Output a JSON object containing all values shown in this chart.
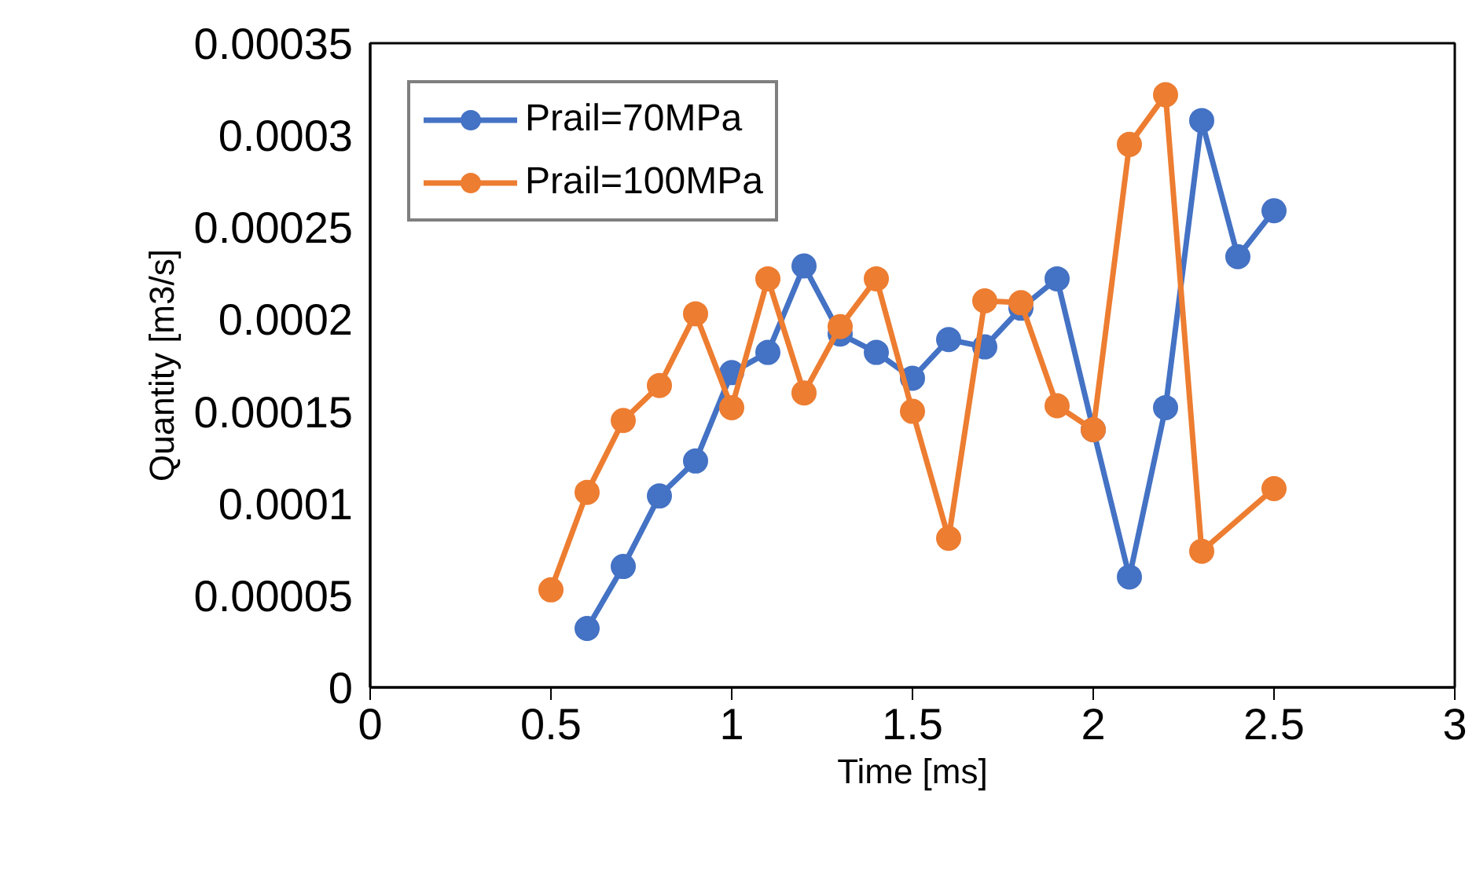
{
  "chart_data": {
    "type": "line",
    "xlabel": "Time [ms]",
    "ylabel": "Quantity [m3/s]",
    "xlim": [
      0,
      3
    ],
    "xticks": [
      0,
      0.5,
      1,
      1.5,
      2,
      2.5,
      3
    ],
    "ylim": [
      0,
      0.00035
    ],
    "yticks": [
      0,
      {
        "value": 5e-05,
        "label": "0.00005"
      },
      0.0001,
      0.00015,
      0.0002,
      0.00025,
      0.0003,
      0.00035
    ],
    "grid": false,
    "legend": "top left",
    "marker": "circle",
    "line_style": "solid",
    "series": [
      {
        "name": "Prail=70MPa",
        "color": "#4472c4",
        "x": [
          0.6,
          0.7,
          0.8,
          0.9,
          1.0,
          1.1,
          1.2,
          1.3,
          1.4,
          1.5,
          1.6,
          1.7,
          1.8,
          1.9,
          2.0,
          2.1,
          2.2,
          2.3,
          2.4,
          2.5
        ],
        "values": [
          3.2e-05,
          6.57e-05,
          0.000104,
          0.000123,
          0.000171,
          0.000182,
          0.000229,
          0.000192,
          0.000182,
          0.000168,
          0.000189,
          0.000185,
          0.000206,
          0.000222,
          0.00014,
          6e-05,
          0.000152,
          0.000308,
          0.000234,
          0.000259
        ]
      },
      {
        "name": "Prail=100MPa",
        "color": "#ed7d31",
        "x": [
          0.5,
          0.6,
          0.7,
          0.8,
          0.9,
          1.0,
          1.1,
          1.2,
          1.3,
          1.4,
          1.5,
          1.6,
          1.7,
          1.8,
          1.9,
          2.0,
          2.1,
          2.2,
          2.3,
          2.5
        ],
        "values": [
          5.3e-05,
          0.000106,
          0.000145,
          0.000164,
          0.000203,
          0.000152,
          0.000222,
          0.00016,
          0.000196,
          0.000222,
          0.00015,
          8.1e-05,
          0.00021,
          0.000209,
          0.000153,
          0.00014,
          0.000295,
          0.000322,
          7.4e-05,
          0.000108
        ]
      }
    ]
  }
}
